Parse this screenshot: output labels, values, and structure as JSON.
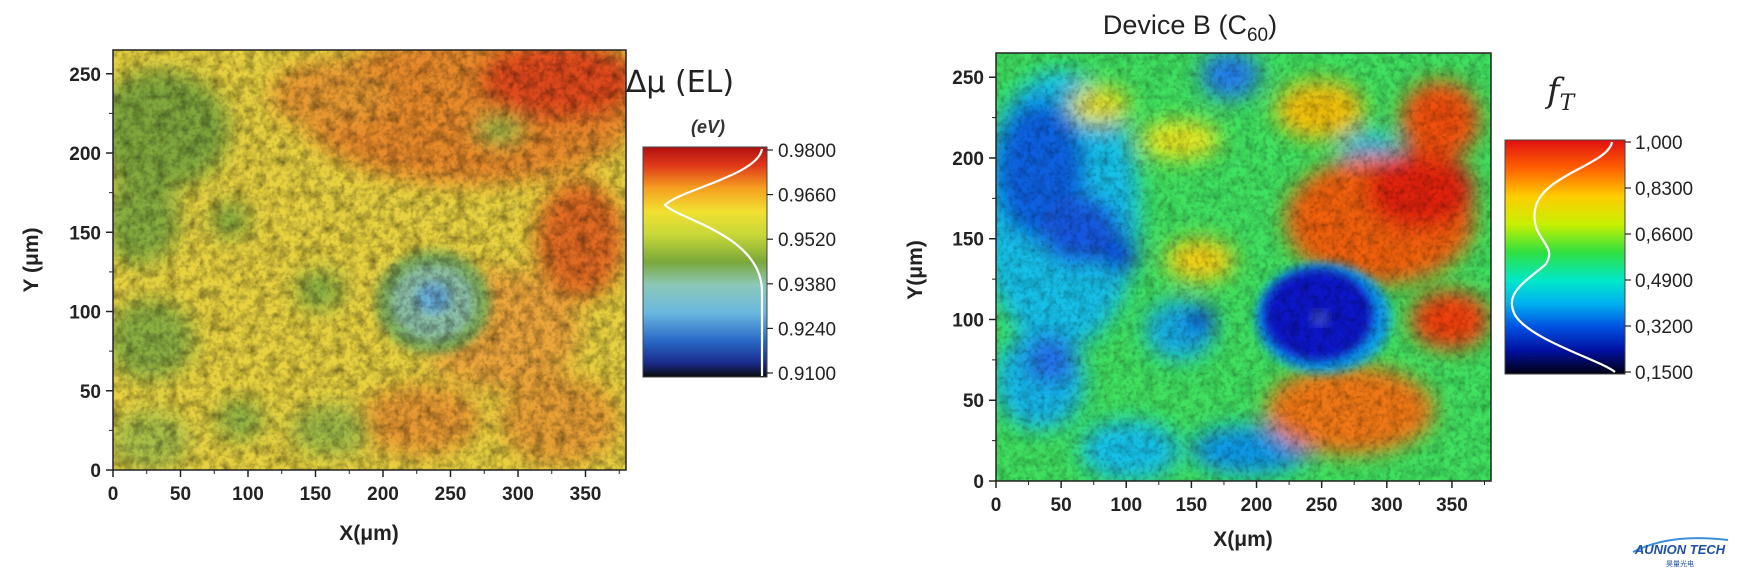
{
  "chart_data": [
    {
      "type": "heatmap",
      "title": "",
      "xlabel": "X(μm)",
      "ylabel": "Y (μm)",
      "xlim": [
        0,
        380
      ],
      "ylim": [
        0,
        265
      ],
      "xticks": [
        "0",
        "50",
        "100",
        "150",
        "200",
        "250",
        "300",
        "350"
      ],
      "yticks": [
        "0",
        "50",
        "100",
        "150",
        "200",
        "250"
      ],
      "colorbar": {
        "title": "Δμ (EL)",
        "unit": "(eV)",
        "ticks": [
          "0.9800",
          "0.9660",
          "0.9520",
          "0.9380",
          "0.9240",
          "0.9100"
        ],
        "range": [
          0.91,
          0.98
        ],
        "histogram_peak": 0.962
      },
      "features": {
        "spot_center": [
          245,
          110
        ],
        "spot_value": 0.924,
        "background_value": 0.96
      }
    },
    {
      "type": "heatmap",
      "title": "Device B (C",
      "title_subscript": "60",
      "title_close": ")",
      "xlabel": "X(μm)",
      "ylabel": "Y(μm)",
      "xlim": [
        0,
        380
      ],
      "ylim": [
        0,
        265
      ],
      "xticks": [
        "0",
        "50",
        "100",
        "150",
        "200",
        "250",
        "300",
        "350"
      ],
      "yticks": [
        "0",
        "50",
        "100",
        "150",
        "200",
        "250"
      ],
      "colorbar": {
        "title_symbol": "f",
        "title_subscript": "T",
        "ticks": [
          "1,000",
          "0,8300",
          "0,6600",
          "0,4900",
          "0,3200",
          "0,1500"
        ],
        "range": [
          0.15,
          1.0
        ],
        "histogram_peaks": [
          0.85,
          0.45
        ]
      },
      "features": {
        "spot_center": [
          250,
          110
        ],
        "spot_value": 0.2,
        "background_value": 0.55
      }
    }
  ],
  "watermark": {
    "brand": "AUNION TECH",
    "sub": "昊量光电"
  },
  "colors": {
    "jet": [
      "#00007f",
      "#0000ff",
      "#0080ff",
      "#00ffff",
      "#80ff80",
      "#ffff00",
      "#ff8000",
      "#ff0000",
      "#7f0000"
    ],
    "rainbow_el": [
      "#0a0a0a",
      "#1a2a8a",
      "#2a6ac8",
      "#6ab8e0",
      "#8cc8c0",
      "#7aa83a",
      "#6a9a2a",
      "#c8d838",
      "#f0e030",
      "#f5a020",
      "#e04018",
      "#b01010"
    ]
  }
}
